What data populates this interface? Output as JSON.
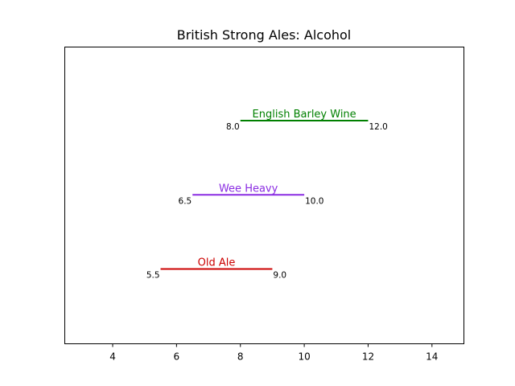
{
  "chart_data": {
    "type": "range",
    "title": "British Strong Ales: Alcohol",
    "xlabel": "",
    "ylabel": "",
    "xlim": [
      2.5,
      15
    ],
    "xticks": [
      4,
      6,
      8,
      10,
      12,
      14
    ],
    "grid": false,
    "series": [
      {
        "name": "English Barley Wine",
        "low": 8.0,
        "high": 12.0,
        "low_label": "8.0",
        "high_label": "12.0",
        "color": "#008000"
      },
      {
        "name": "Wee Heavy",
        "low": 6.5,
        "high": 10.0,
        "low_label": "6.5",
        "high_label": "10.0",
        "color": "#8a2be2"
      },
      {
        "name": "Old Ale",
        "low": 5.5,
        "high": 9.0,
        "low_label": "5.5",
        "high_label": "9.0",
        "color": "#cc0000"
      }
    ]
  }
}
